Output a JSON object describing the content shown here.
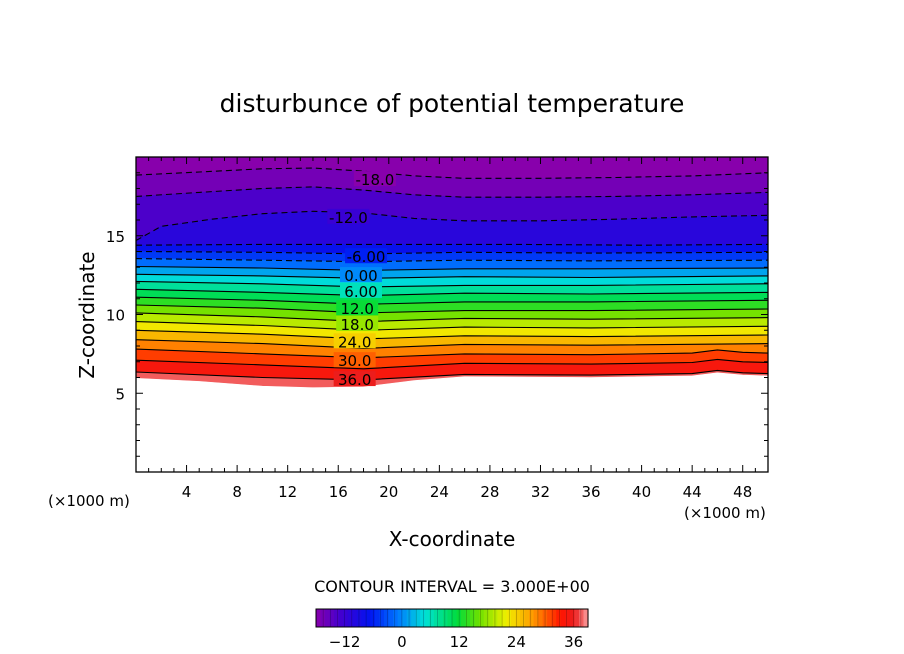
{
  "chart_data": {
    "type": "contour",
    "title": "disturbunce of potential temperature",
    "xlabel": "X-coordinate",
    "ylabel": "Z-coordinate",
    "x_unit": "(×1000 m)",
    "z_unit": "(×1000 m)",
    "xlim": [
      0,
      50
    ],
    "ylim": [
      0,
      20
    ],
    "x_ticks": [
      4,
      8,
      12,
      16,
      20,
      24,
      28,
      32,
      36,
      40,
      44,
      48
    ],
    "y_ticks": [
      5,
      10,
      15
    ],
    "contour_interval_text": "CONTOUR INTERVAL = 3.000E+00",
    "contour_levels": [
      -18,
      -15,
      -12,
      -9,
      -6,
      -3,
      0,
      3,
      6,
      9,
      12,
      15,
      18,
      21,
      24,
      27,
      30,
      33,
      36
    ],
    "contour_labels": [
      {
        "text": "-18.0",
        "value": -18,
        "x": 18.9,
        "z": 18.6
      },
      {
        "text": "-12.0",
        "value": -12,
        "x": 16.8,
        "z": 16.2
      },
      {
        "text": "-6.00",
        "value": -6,
        "x": 18.2,
        "z": 13.7
      },
      {
        "text": "0.00",
        "value": 0,
        "x": 17.8,
        "z": 12.5
      },
      {
        "text": "6.00",
        "value": 6,
        "x": 17.8,
        "z": 11.5
      },
      {
        "text": "12.0",
        "value": 12,
        "x": 17.5,
        "z": 10.4
      },
      {
        "text": "18.0",
        "value": 18,
        "x": 17.5,
        "z": 9.4
      },
      {
        "text": "24.0",
        "value": 24,
        "x": 17.3,
        "z": 8.3
      },
      {
        "text": "30.0",
        "value": 30,
        "x": 17.3,
        "z": 7.1
      },
      {
        "text": "36.0",
        "value": 36,
        "x": 17.3,
        "z": 5.9
      }
    ],
    "colorbar": {
      "range": [
        -18,
        39
      ],
      "ticks": [
        -12,
        0,
        12,
        24,
        36
      ],
      "tick_labels": [
        "−12",
        "0",
        "12",
        "24",
        "36"
      ]
    },
    "field_rows": [
      {
        "value": -18,
        "profile": [
          [
            0,
            18.85
          ],
          [
            5,
            19.05
          ],
          [
            10,
            19.25
          ],
          [
            14,
            19.3
          ],
          [
            18,
            19.1
          ],
          [
            22,
            18.8
          ],
          [
            26,
            18.65
          ],
          [
            32,
            18.65
          ],
          [
            38,
            18.7
          ],
          [
            44,
            18.8
          ],
          [
            50,
            19.0
          ]
        ]
      },
      {
        "value": -15,
        "profile": [
          [
            0,
            17.5
          ],
          [
            5,
            17.75
          ],
          [
            10,
            18.0
          ],
          [
            14,
            18.1
          ],
          [
            18,
            17.9
          ],
          [
            22,
            17.6
          ],
          [
            26,
            17.45
          ],
          [
            32,
            17.45
          ],
          [
            38,
            17.5
          ],
          [
            44,
            17.6
          ],
          [
            50,
            17.75
          ]
        ]
      },
      {
        "value": -12,
        "profile": [
          [
            0,
            14.7
          ],
          [
            2,
            15.6
          ],
          [
            6,
            16.05
          ],
          [
            10,
            16.4
          ],
          [
            14,
            16.55
          ],
          [
            18,
            16.45
          ],
          [
            22,
            16.1
          ],
          [
            26,
            15.95
          ],
          [
            32,
            15.95
          ],
          [
            38,
            16.05
          ],
          [
            44,
            16.2
          ],
          [
            50,
            16.3
          ]
        ]
      },
      {
        "value": -9,
        "profile": [
          [
            0,
            14.4
          ],
          [
            10,
            14.45
          ],
          [
            20,
            14.45
          ],
          [
            30,
            14.45
          ],
          [
            40,
            14.4
          ],
          [
            50,
            14.45
          ]
        ]
      },
      {
        "value": -6,
        "profile": [
          [
            0,
            14.0
          ],
          [
            10,
            13.95
          ],
          [
            18,
            13.85
          ],
          [
            26,
            13.95
          ],
          [
            36,
            13.9
          ],
          [
            50,
            13.95
          ]
        ]
      },
      {
        "value": -3,
        "profile": [
          [
            0,
            13.55
          ],
          [
            10,
            13.45
          ],
          [
            18,
            13.35
          ],
          [
            26,
            13.45
          ],
          [
            36,
            13.4
          ],
          [
            50,
            13.45
          ]
        ]
      },
      {
        "value": 0,
        "profile": [
          [
            0,
            13.05
          ],
          [
            10,
            12.95
          ],
          [
            18,
            12.8
          ],
          [
            26,
            12.9
          ],
          [
            36,
            12.9
          ],
          [
            50,
            12.95
          ]
        ]
      },
      {
        "value": 3,
        "profile": [
          [
            0,
            12.55
          ],
          [
            10,
            12.45
          ],
          [
            18,
            12.3
          ],
          [
            26,
            12.4
          ],
          [
            36,
            12.35
          ],
          [
            50,
            12.45
          ]
        ]
      },
      {
        "value": 6,
        "profile": [
          [
            0,
            12.1
          ],
          [
            10,
            11.95
          ],
          [
            18,
            11.75
          ],
          [
            26,
            11.85
          ],
          [
            36,
            11.85
          ],
          [
            50,
            11.95
          ]
        ]
      },
      {
        "value": 9,
        "profile": [
          [
            0,
            11.6
          ],
          [
            10,
            11.4
          ],
          [
            18,
            11.2
          ],
          [
            26,
            11.35
          ],
          [
            36,
            11.3
          ],
          [
            50,
            11.4
          ]
        ]
      },
      {
        "value": 12,
        "profile": [
          [
            0,
            11.1
          ],
          [
            10,
            10.9
          ],
          [
            18,
            10.65
          ],
          [
            26,
            10.8
          ],
          [
            36,
            10.8
          ],
          [
            50,
            10.9
          ]
        ]
      },
      {
        "value": 15,
        "profile": [
          [
            0,
            10.6
          ],
          [
            10,
            10.4
          ],
          [
            18,
            10.1
          ],
          [
            26,
            10.25
          ],
          [
            36,
            10.25
          ],
          [
            50,
            10.35
          ]
        ]
      },
      {
        "value": 18,
        "profile": [
          [
            0,
            10.1
          ],
          [
            10,
            9.85
          ],
          [
            18,
            9.55
          ],
          [
            26,
            9.75
          ],
          [
            36,
            9.7
          ],
          [
            50,
            9.8
          ]
        ]
      },
      {
        "value": 21,
        "profile": [
          [
            0,
            9.55
          ],
          [
            10,
            9.3
          ],
          [
            18,
            9.0
          ],
          [
            26,
            9.2
          ],
          [
            36,
            9.15
          ],
          [
            50,
            9.25
          ]
        ]
      },
      {
        "value": 24,
        "profile": [
          [
            0,
            9.0
          ],
          [
            10,
            8.75
          ],
          [
            18,
            8.45
          ],
          [
            26,
            8.65
          ],
          [
            36,
            8.6
          ],
          [
            50,
            8.7
          ]
        ]
      },
      {
        "value": 27,
        "profile": [
          [
            0,
            8.4
          ],
          [
            10,
            8.15
          ],
          [
            18,
            7.85
          ],
          [
            26,
            8.1
          ],
          [
            36,
            8.05
          ],
          [
            50,
            8.15
          ]
        ]
      },
      {
        "value": 30,
        "profile": [
          [
            0,
            7.8
          ],
          [
            10,
            7.5
          ],
          [
            18,
            7.25
          ],
          [
            26,
            7.5
          ],
          [
            36,
            7.45
          ],
          [
            44,
            7.55
          ],
          [
            46,
            7.75
          ],
          [
            48,
            7.6
          ],
          [
            50,
            7.55
          ]
        ]
      },
      {
        "value": 33,
        "profile": [
          [
            0,
            7.1
          ],
          [
            10,
            6.8
          ],
          [
            18,
            6.55
          ],
          [
            26,
            6.9
          ],
          [
            36,
            6.85
          ],
          [
            44,
            6.95
          ],
          [
            46,
            7.15
          ],
          [
            48,
            7.0
          ],
          [
            50,
            6.95
          ]
        ]
      },
      {
        "value": 36,
        "profile": [
          [
            0,
            6.35
          ],
          [
            10,
            6.0
          ],
          [
            18,
            5.85
          ],
          [
            26,
            6.2
          ],
          [
            36,
            6.15
          ],
          [
            44,
            6.25
          ],
          [
            46,
            6.45
          ],
          [
            48,
            6.3
          ],
          [
            50,
            6.25
          ]
        ]
      },
      {
        "value": 39,
        "profile": [
          [
            0,
            5.95
          ],
          [
            5,
            5.75
          ],
          [
            10,
            5.45
          ],
          [
            14,
            5.35
          ],
          [
            18,
            5.4
          ],
          [
            22,
            5.8
          ],
          [
            26,
            6.05
          ],
          [
            36,
            6.0
          ],
          [
            44,
            6.1
          ],
          [
            46,
            6.3
          ],
          [
            48,
            6.15
          ],
          [
            50,
            6.1
          ]
        ]
      }
    ]
  }
}
